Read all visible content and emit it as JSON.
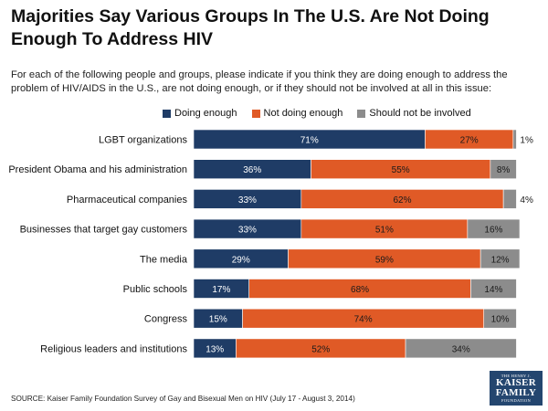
{
  "title": "Majorities Say Various Groups In The U.S. Are Not Doing Enough To Address HIV",
  "subtitle": "For each of the following people and groups, please indicate if you think they are doing enough to address the problem of HIV/AIDS in the U.S., are not doing enough, or if they should not be involved at all in this issue:",
  "source": "SOURCE: Kaiser Family Foundation Survey of Gay and Bisexual Men on HIV (July 17 - August 3, 2014)",
  "logo": {
    "line1": "THE HENRY J.",
    "line2a": "KAISER",
    "line2b": "FAMILY",
    "line3": "FOUNDATION"
  },
  "colors": {
    "doing_enough": "#1f3c66",
    "not_doing_enough": "#e05a26",
    "not_involved": "#8c8c8c"
  },
  "chart_data": {
    "type": "bar",
    "orientation": "horizontal",
    "stacked": true,
    "title": "Majorities Say Various Groups In The U.S. Are Not Doing Enough To Address HIV",
    "xlim": [
      0,
      100
    ],
    "categories": [
      "LGBT organizations",
      "President Obama and his administration",
      "Pharmaceutical companies",
      "Businesses that target gay customers",
      "The media",
      "Public schools",
      "Congress",
      "Religious leaders and institutions"
    ],
    "series": [
      {
        "name": "Doing enough",
        "color": "#1f3c66",
        "values": [
          71,
          36,
          33,
          33,
          29,
          17,
          15,
          13
        ]
      },
      {
        "name": "Not doing enough",
        "color": "#e05a26",
        "values": [
          27,
          55,
          62,
          51,
          59,
          68,
          74,
          52
        ]
      },
      {
        "name": "Should not be involved",
        "color": "#8c8c8c",
        "values": [
          1,
          8,
          4,
          16,
          12,
          14,
          10,
          34
        ]
      }
    ],
    "legend": "top"
  }
}
